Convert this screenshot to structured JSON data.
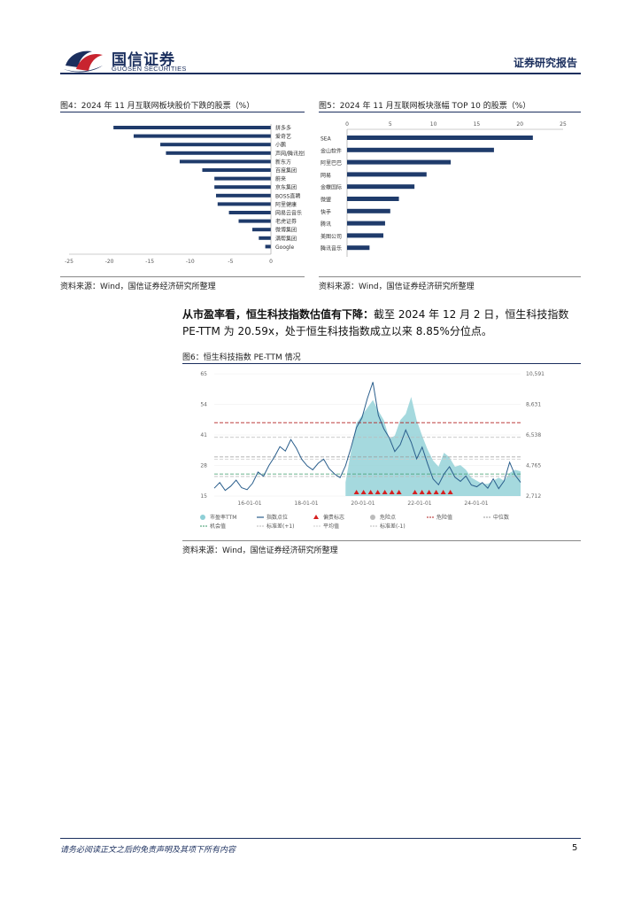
{
  "header": {
    "logo_cn": "国信证券",
    "logo_en": "GUOSEN SECURITIES",
    "report_type": "证券研究报告"
  },
  "figure4": {
    "caption": "图4：2024 年 11 月互联网板块股价下跌的股票（%）",
    "source": "资料来源：Wind，国信证券经济研究所整理",
    "chart_data": {
      "type": "bar",
      "orientation": "horizontal",
      "categories": [
        "拼多多",
        "爱奇艺",
        "小鹏",
        "声网/腾讯控股",
        "新东方",
        "百度集团",
        "蔚来",
        "京东集团",
        "BOSS直聘",
        "阿里健康",
        "网易云音乐",
        "老虎证券",
        "微博集团",
        "满帮集团",
        "Google"
      ],
      "values": [
        -19.5,
        -17,
        -13.7,
        -13,
        -11.3,
        -8.5,
        -7,
        -7,
        -6.8,
        -6.6,
        -5.2,
        -4,
        -2.3,
        -1.5,
        -0.7
      ],
      "xlim": [
        -25,
        0
      ],
      "xticks": [
        "-25",
        "-20",
        "-15",
        "-10",
        "-5",
        "0"
      ],
      "color": "#1f3b6b"
    }
  },
  "figure5": {
    "caption": "图5：2024 年 11 月互联网板块涨幅 TOP 10 的股票（%）",
    "source": "资料来源：Wind，国信证券经济研究所整理",
    "chart_data": {
      "type": "bar",
      "orientation": "horizontal",
      "categories": [
        "SEA",
        "金山软件",
        "阿里巴巴",
        "网易",
        "金蝶国际",
        "微盟",
        "快手",
        "腾讯",
        "美图公司",
        "腾讯音乐"
      ],
      "values": [
        21.5,
        17,
        12,
        9.2,
        7.8,
        6,
        5,
        4.4,
        4.2,
        2.6
      ],
      "xlim": [
        0,
        25
      ],
      "xticks": [
        "0",
        "5",
        "10",
        "15",
        "20",
        "25"
      ],
      "color": "#1f3b6b"
    }
  },
  "paragraph": {
    "bold": "从市盈率看，恒生科技指数估值有下降：",
    "text": "截至 2024 年 12 月 2 日，恒生科技指数 PE-TTM 为 20.59x，处于恒生科技指数成立以来 8.85%分位点。"
  },
  "figure6": {
    "caption": "图6：恒生科技指数 PE-TTM 情况",
    "source": "资料来源：Wind，国信证券经济研究所整理",
    "chart_data": {
      "type": "line",
      "left_axis": {
        "ticks": [
          "65",
          "54",
          "41",
          "28",
          "15"
        ],
        "range": [
          15,
          65
        ]
      },
      "right_axis": {
        "ticks": [
          "10,591",
          "8,631",
          "6,538",
          "4,765",
          "2,712"
        ],
        "range": [
          2712,
          10591
        ]
      },
      "x_ticks": [
        "16-01-01",
        "18-01-01",
        "20-01-01",
        "22-01-01",
        "24-01-01"
      ],
      "reference_lines": {
        "danger_value": 45,
        "plus1_std": 39,
        "median": 31,
        "average": 30,
        "opportunity_value": 24,
        "minus1_std": 23
      },
      "series": [
        {
          "name": "市盈率TTM",
          "color": "#2a5e8c"
        },
        {
          "name": "指数点位",
          "color": "#8ecfd6"
        }
      ],
      "pe_series": [
        18.2,
        20.5,
        17.3,
        19.0,
        21.5,
        18.4,
        17.6,
        20.2,
        24.8,
        23.1,
        27.5,
        31.0,
        35.2,
        33.4,
        38.1,
        34.6,
        30.0,
        27.3,
        25.7,
        28.4,
        30.1,
        26.2,
        24.0,
        22.5,
        27.4,
        34.8,
        43.0,
        47.0,
        55.0,
        61.6,
        48.0,
        42.5,
        38.8,
        33.2,
        36.0,
        42.0,
        37.0,
        30.2,
        35.0,
        28.2,
        22.0,
        19.6,
        24.0,
        27.0,
        22.7,
        21.0,
        23.2,
        19.5,
        18.8,
        20.5,
        18.2,
        22.0,
        18.0,
        21.2,
        28.8,
        23.5,
        20.6
      ],
      "index_series": [
        2800,
        2850,
        2800,
        2900,
        3000,
        2950,
        2900,
        3000,
        3050,
        3100,
        3200,
        3250,
        3300,
        3250,
        3300,
        3200,
        3100,
        3000,
        3100,
        3100,
        3100,
        3100,
        3150,
        3200,
        3600,
        5600,
        7400,
        7900,
        8400,
        8900,
        8200,
        7600,
        6400,
        6600,
        7600,
        8000,
        9100,
        7600,
        6600,
        5700,
        5000,
        4600,
        5500,
        5200,
        4600,
        4700,
        4400,
        3900,
        3700,
        3500,
        3500,
        3700,
        3900,
        3700,
        4200,
        4400,
        4300
      ],
      "danger_marker_count": 13,
      "legend": [
        "市盈率TTM",
        "指数点位",
        "偏贵标志",
        "危险点",
        "危险值",
        "中位数",
        "机会值",
        "标准差(+1)",
        "平均值",
        "标准差(-1)"
      ]
    }
  },
  "footer": {
    "disclaimer": "请务必阅读正文之后的免责声明及其项下所有内容",
    "page": "5"
  }
}
